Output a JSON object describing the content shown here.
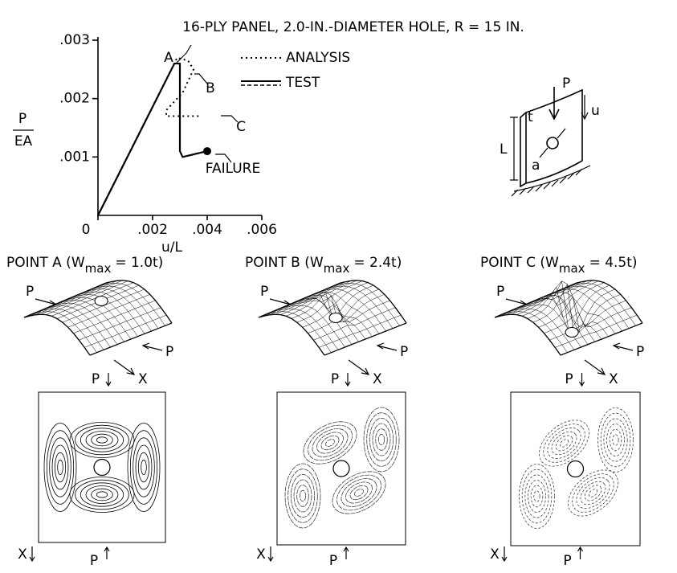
{
  "title": "16-PLY PANEL, 2.0-IN.-DIAMETER HOLE, R = 15 IN.",
  "chart_data": {
    "type": "line",
    "ylabel": {
      "numerator": "P",
      "denominator": "EA"
    },
    "xlabel": "u/L",
    "xlim": [
      0,
      0.006
    ],
    "ylim": [
      0,
      0.003
    ],
    "xticks": [
      0,
      {
        "value": 0.002,
        "label": ".002"
      },
      {
        "value": 0.004,
        "label": ".004"
      },
      {
        "value": 0.006,
        "label": ".006"
      }
    ],
    "yticks": [
      {
        "value": 0.001,
        "label": ".001"
      },
      {
        "value": 0.002,
        "label": ".002"
      },
      {
        "value": 0.003,
        "label": ".003"
      }
    ],
    "series": [
      {
        "name": "ANALYSIS",
        "color": "#000000",
        "style": "dotted",
        "x": [
          0,
          0.0029,
          0.0033,
          0.0035,
          0.0031,
          0.0025,
          0.0025,
          0.0037
        ],
        "values": [
          0,
          0.0027,
          0.00265,
          0.0025,
          0.0021,
          0.0018,
          0.0017,
          0.0017
        ]
      },
      {
        "name": "TEST",
        "color": "#000000",
        "style": "solid",
        "x": [
          0,
          0.0028,
          0.003,
          0.003,
          0.0031,
          0.004
        ],
        "values": [
          0,
          0.0026,
          0.0026,
          0.0011,
          0.001,
          0.0011
        ]
      }
    ],
    "annotations": [
      "A",
      "B",
      "C",
      "FAILURE"
    ]
  },
  "sketch": {
    "labels": [
      "t",
      "P",
      "u",
      "L",
      "a"
    ]
  },
  "panels": [
    {
      "caption": "POINT A (W",
      "subscript": "max",
      "suffix": "= 1.0t)",
      "surface_labels": [
        "P",
        "P",
        "X"
      ],
      "contour_labels": [
        "P",
        "X",
        "P"
      ]
    },
    {
      "caption": "POINT B (W",
      "subscript": "max",
      "suffix": "= 2.4t)",
      "surface_labels": [
        "P",
        "P",
        "X"
      ],
      "contour_labels": [
        "P",
        "X",
        "P"
      ]
    },
    {
      "caption": "POINT C (W",
      "subscript": "max",
      "suffix": "= 4.5t)",
      "surface_labels": [
        "P",
        "P",
        "X"
      ],
      "contour_labels": [
        "P",
        "X",
        "P"
      ]
    }
  ]
}
